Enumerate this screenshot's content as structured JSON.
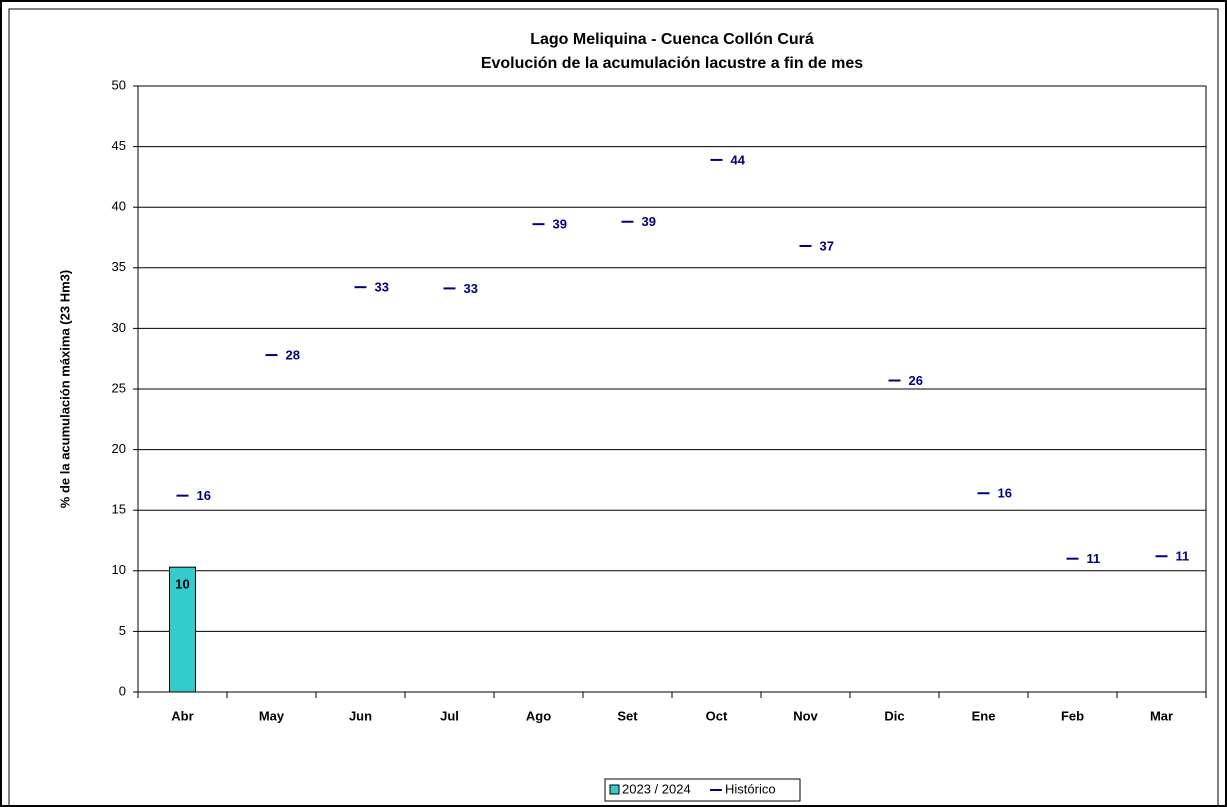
{
  "chart_data": {
    "type": "bar",
    "title": "Lago Meliquina - Cuenca Collón Curá",
    "subtitle": "Evolución de la acumulación lacustre a fin de mes",
    "y_label": "% de la acumulación máxima (23 Hm3)",
    "categories": [
      "Abr",
      "May",
      "Jun",
      "Jul",
      "Ago",
      "Set",
      "Oct",
      "Nov",
      "Dic",
      "Ene",
      "Feb",
      "Mar"
    ],
    "series": [
      {
        "name": "2023 / 2024",
        "type": "bar",
        "color": "#33cccc",
        "values": [
          10.3,
          null,
          null,
          null,
          null,
          null,
          null,
          null,
          null,
          null,
          null,
          null
        ],
        "value_labels": [
          "10",
          null,
          null,
          null,
          null,
          null,
          null,
          null,
          null,
          null,
          null,
          null
        ]
      },
      {
        "name": "Histórico",
        "type": "marker",
        "color": "#000080",
        "values": [
          16.2,
          27.8,
          33.4,
          33.3,
          38.6,
          38.8,
          43.9,
          36.8,
          25.7,
          16.4,
          11.0,
          11.2
        ],
        "value_labels": [
          "16",
          "28",
          "33",
          "33",
          "39",
          "39",
          "44",
          "37",
          "26",
          "16",
          "11",
          "11"
        ]
      }
    ],
    "ylim": [
      0,
      50
    ],
    "yticks": [
      0,
      5,
      10,
      15,
      20,
      25,
      30,
      35,
      40,
      45,
      50
    ],
    "grid": true,
    "legend": "bottom"
  }
}
